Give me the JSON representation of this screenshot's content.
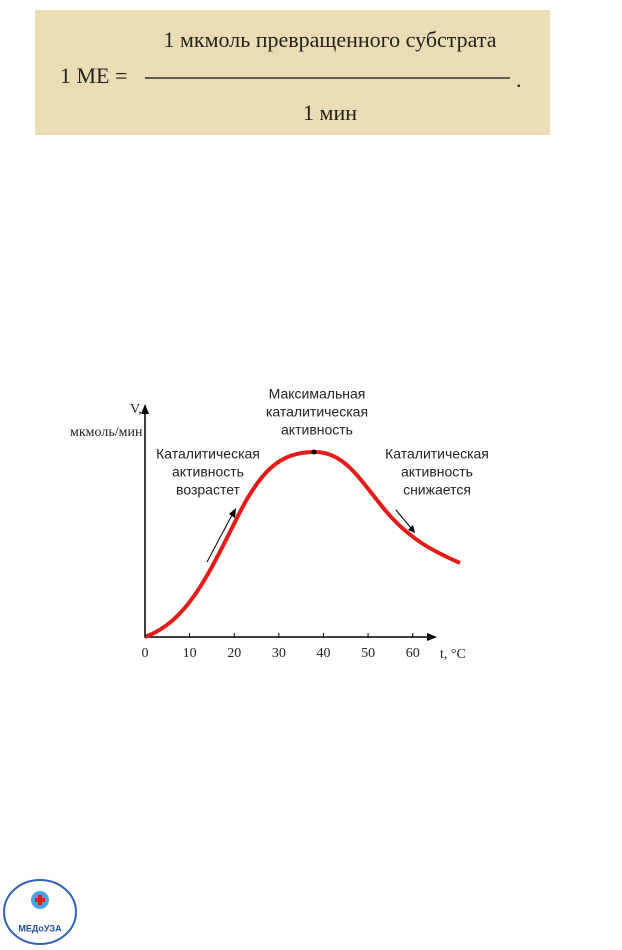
{
  "formula": {
    "lhs": "1 МЕ =",
    "numerator": "1 мкмоль превращенного субстрата",
    "denominator": "1 мин",
    "end": "."
  },
  "chart_data": {
    "type": "curve",
    "x_label": "t, °C",
    "y_label": [
      "V,",
      "мкмоль/мин"
    ],
    "xlim": [
      0,
      65
    ],
    "xticks": [
      0,
      10,
      20,
      30,
      40,
      50,
      60
    ],
    "annotations": [
      {
        "lines": [
          "Максимальная",
          "каталитическая",
          "активность"
        ]
      },
      {
        "lines": [
          "Каталитическая",
          "активность",
          "возрастет"
        ]
      },
      {
        "lines": [
          "Каталитическая",
          "активность",
          "снижается"
        ]
      }
    ]
  },
  "logo": {
    "text": "МЕДоУЗА"
  }
}
